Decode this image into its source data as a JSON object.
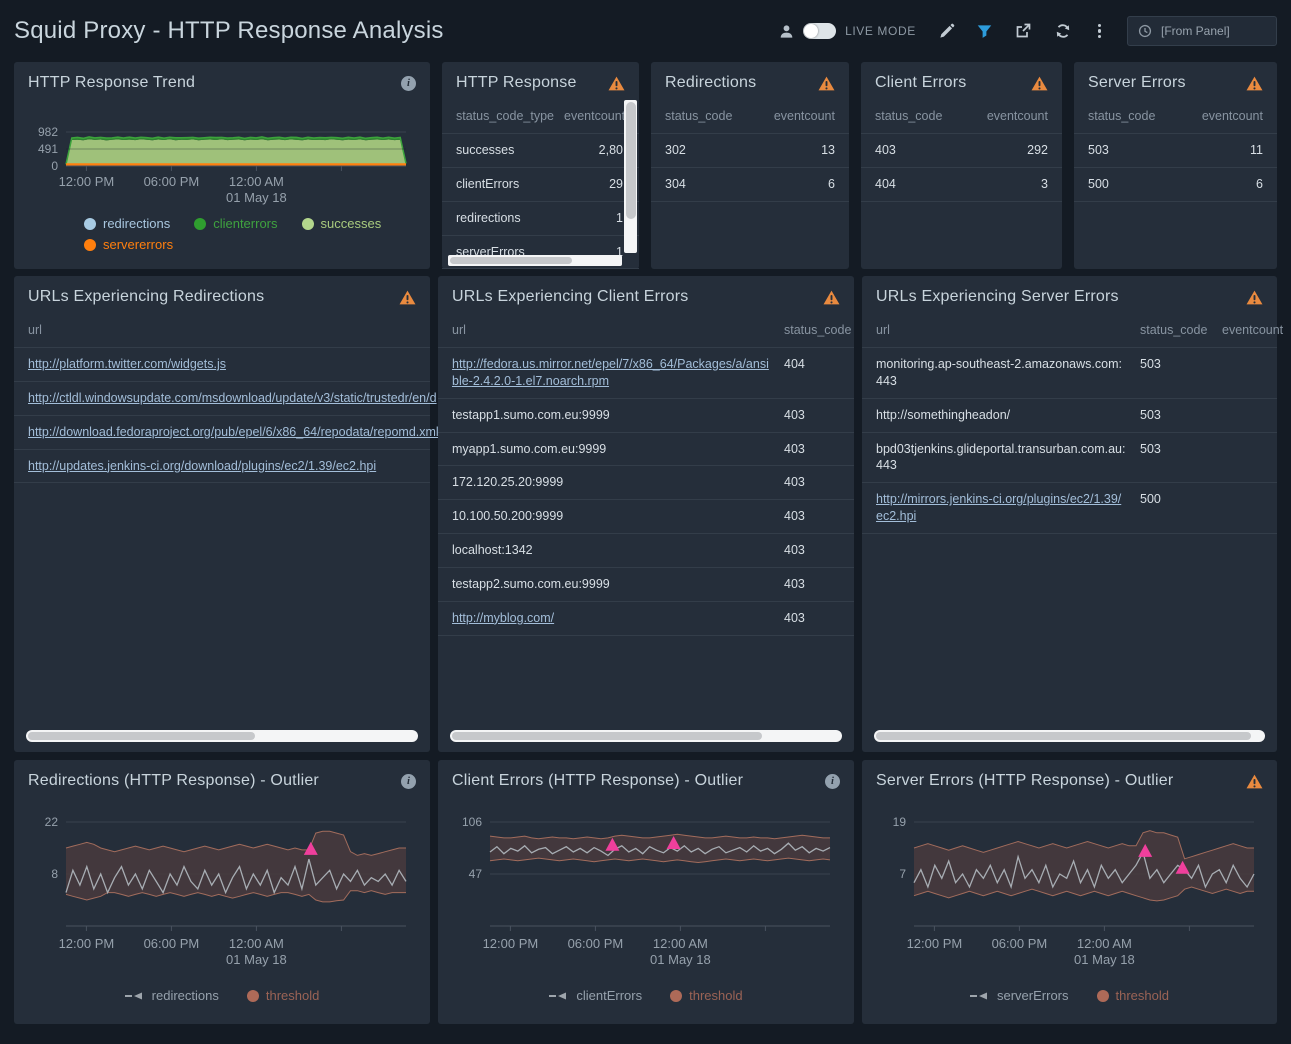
{
  "header": {
    "title": "Squid Proxy - HTTP Response Analysis",
    "live_mode_label": "LIVE MODE",
    "time_range_value": "[From Panel]"
  },
  "colors": {
    "page_bg": "#141B24",
    "panel_bg": "#252E3A",
    "accent_blue": "#2D9CDB",
    "warning_orange": "#E98A3F",
    "outlier_marker_pink": "#EF3F9C",
    "threshold_band_fill": "#483A3E",
    "threshold_band_edge": "#A26C5C",
    "series_line_gray": "#A7ADB3",
    "link_blue": "#A3BED9"
  },
  "panels": {
    "http_response_trend": {
      "title": "HTTP Response Trend",
      "icon": "info",
      "legend": [
        {
          "label": "redirections",
          "marker": "dot",
          "color": "#A8CBE3",
          "text_color": "#A9C7DF"
        },
        {
          "label": "clienterrors",
          "marker": "dot",
          "color": "#2F9E2F",
          "text_color": "#3FA23F"
        },
        {
          "label": "successes",
          "marker": "dot",
          "color": "#B3D68C",
          "text_color": "#A9CB7E"
        },
        {
          "label": "servererrors",
          "marker": "dot",
          "color": "#FF7F0E",
          "text_color": "#FF7F0E"
        }
      ]
    },
    "http_response": {
      "title": "HTTP Response",
      "icon": "warning",
      "columns": [
        "status_code_type",
        "eventcount"
      ],
      "rows": [
        [
          "successes",
          "2,80"
        ],
        [
          "clientErrors",
          "29"
        ],
        [
          "redirections",
          "1"
        ],
        [
          "serverErrors",
          "1"
        ]
      ]
    },
    "redirections": {
      "title": "Redirections",
      "icon": "warning",
      "columns": [
        "status_code",
        "eventcount"
      ],
      "rows": [
        [
          "302",
          "13"
        ],
        [
          "304",
          "6"
        ]
      ]
    },
    "client_errors": {
      "title": "Client Errors",
      "icon": "warning",
      "columns": [
        "status_code",
        "eventcount"
      ],
      "rows": [
        [
          "403",
          "292"
        ],
        [
          "404",
          "3"
        ]
      ]
    },
    "server_errors": {
      "title": "Server Errors",
      "icon": "warning",
      "columns": [
        "status_code",
        "eventcount"
      ],
      "rows": [
        [
          "503",
          "11"
        ],
        [
          "500",
          "6"
        ]
      ]
    },
    "urls_redirections": {
      "title": "URLs Experiencing Redirections",
      "icon": "warning",
      "columns": [
        "url"
      ],
      "rows": [
        {
          "url": "http://platform.twitter.com/widgets.js",
          "link": true
        },
        {
          "url": "http://ctldl.windowsupdate.com/msdownload/update/v3/static/trustedr/en/d",
          "link": true
        },
        {
          "url": "http://download.fedoraproject.org/pub/epel/6/x86_64/repodata/repomd.xml",
          "link": true
        },
        {
          "url": "http://updates.jenkins-ci.org/download/plugins/ec2/1.39/ec2.hpi",
          "link": true
        }
      ]
    },
    "urls_client_errors": {
      "title": "URLs Experiencing Client Errors",
      "icon": "warning",
      "columns": [
        "url",
        "status_code"
      ],
      "rows": [
        {
          "url": "http://fedora.us.mirror.net/epel/7/x86_64/Packages/a/ansible-2.4.2.0-1.el7.noarch.rpm",
          "status_code": "404",
          "link": true
        },
        {
          "url": "testapp1.sumo.com.eu:9999",
          "status_code": "403"
        },
        {
          "url": "myapp1.sumo.com.eu:9999",
          "status_code": "403"
        },
        {
          "url": "172.120.25.20:9999",
          "status_code": "403"
        },
        {
          "url": "10.100.50.200:9999",
          "status_code": "403"
        },
        {
          "url": "localhost:1342",
          "status_code": "403"
        },
        {
          "url": "testapp2.sumo.com.eu:9999",
          "status_code": "403"
        },
        {
          "url": "http://myblog.com/",
          "status_code": "403",
          "link": true
        }
      ]
    },
    "urls_server_errors": {
      "title": "URLs Experiencing Server Errors",
      "icon": "warning",
      "columns": [
        "url",
        "status_code",
        "eventcount"
      ],
      "rows": [
        {
          "url": "monitoring.ap-southeast-2.amazonaws.com:443",
          "status_code": "503",
          "eventcount": ""
        },
        {
          "url": "http://somethingheadon/",
          "status_code": "503",
          "eventcount": ""
        },
        {
          "url": "bpd03tjenkins.glideportal.transurban.com.au:443",
          "status_code": "503",
          "eventcount": ""
        },
        {
          "url": "http://mirrors.jenkins-ci.org/plugins/ec2/1.39/ec2.hpi",
          "status_code": "500",
          "eventcount": "",
          "link": true
        }
      ]
    },
    "outlier_redirections": {
      "title": "Redirections (HTTP Response) - Outlier",
      "icon": "info",
      "legend": [
        {
          "label": "redirections",
          "marker": "line",
          "color": "#9EA5AC",
          "text_color": "#96A1AC"
        },
        {
          "label": "threshold",
          "marker": "dot",
          "color": "#AE6A58",
          "text_color": "#9A6355"
        }
      ]
    },
    "outlier_client_errors": {
      "title": "Client Errors (HTTP Response) - Outlier",
      "icon": "info",
      "legend": [
        {
          "label": "clientErrors",
          "marker": "line",
          "color": "#9EA5AC",
          "text_color": "#96A1AC"
        },
        {
          "label": "threshold",
          "marker": "dot",
          "color": "#AE6A58",
          "text_color": "#9A6355"
        }
      ]
    },
    "outlier_server_errors": {
      "title": "Server Errors (HTTP Response) - Outlier",
      "icon": "warning",
      "legend": [
        {
          "label": "serverErrors",
          "marker": "line",
          "color": "#9EA5AC",
          "text_color": "#96A1AC"
        },
        {
          "label": "threshold",
          "marker": "dot",
          "color": "#AE6A58",
          "text_color": "#9A6355"
        }
      ]
    }
  },
  "chart_data": [
    {
      "type": "area",
      "title": "HTTP Response Trend",
      "stacked": true,
      "ylim": [
        0,
        982
      ],
      "yticks": [
        982,
        491,
        0
      ],
      "x_axis": {
        "ticks": [
          {
            "f": 0.06,
            "label": "12:00 PM"
          },
          {
            "f": 0.31,
            "label": "06:00 PM"
          },
          {
            "f": 0.56,
            "label": "12:00 AM",
            "sublabel": "01 May 18"
          },
          {
            "f": 0.81,
            "label": ""
          }
        ]
      },
      "series": [
        {
          "name": "successes",
          "color": "#A9CE80",
          "values": [
            40,
            750,
            760,
            745,
            770,
            755,
            765,
            740,
            758,
            768,
            750,
            762,
            748,
            772,
            756,
            744,
            766,
            752,
            770,
            746,
            760,
            754,
            768,
            742,
            758,
            764,
            750,
            770,
            748,
            756,
            766,
            744,
            762,
            752,
            770,
            746,
            758,
            764,
            748,
            768,
            754,
            742,
            766,
            750,
            760,
            748,
            770,
            756,
            744,
            762,
            752,
            768,
            746,
            758,
            764,
            750,
            766,
            748,
            760,
            60
          ]
        },
        {
          "name": "clienterrors",
          "color": "#2E8B2E",
          "values": [
            10,
            60,
            65,
            55,
            70,
            58,
            62,
            68,
            54,
            66,
            58,
            72,
            60,
            56,
            64,
            58,
            68,
            54,
            62,
            70,
            56,
            66,
            58,
            64,
            60,
            68,
            72,
            56,
            62,
            58,
            66,
            54,
            64,
            60,
            70,
            56,
            62,
            68,
            58,
            64,
            72,
            54,
            66,
            58,
            62,
            68,
            56,
            64,
            60,
            70,
            58,
            66,
            54,
            62,
            68,
            56,
            64,
            58,
            62,
            15
          ]
        },
        {
          "name": "servererrors",
          "color": "#FF7F0E",
          "constant": 8
        },
        {
          "name": "redirections",
          "color": "#A8CBE3",
          "constant": 4
        }
      ]
    },
    {
      "type": "line",
      "title": "Redirections (HTTP Response) - Outlier",
      "yticks": [
        22,
        8
      ],
      "x_axis": {
        "ticks": [
          {
            "f": 0.06,
            "label": "12:00 PM"
          },
          {
            "f": 0.31,
            "label": "06:00 PM"
          },
          {
            "f": 0.56,
            "label": "12:00 AM",
            "sublabel": "01 May 18"
          },
          {
            "f": 0.81,
            "label": ""
          }
        ]
      },
      "series": [
        {
          "name": "redirections",
          "color": "#A7ADB3",
          "values": [
            3,
            9,
            5,
            10,
            4,
            8,
            3,
            7,
            10,
            5,
            8,
            4,
            9,
            6,
            3,
            8,
            5,
            10,
            6,
            4,
            9,
            5,
            8,
            3,
            7,
            10,
            4,
            8,
            5,
            9,
            3,
            7,
            5,
            10,
            4,
            12,
            5,
            7,
            9,
            4,
            8,
            6,
            9,
            5,
            7,
            6,
            8,
            5,
            9,
            6
          ]
        }
      ],
      "threshold_band": {
        "fill": "#483A3E",
        "edge": "#A26C5C",
        "upper": [
          15,
          15.5,
          16,
          16.5,
          16,
          15,
          14.5,
          14,
          14.5,
          15,
          15.5,
          15,
          14.5,
          15,
          15.5,
          15,
          14.5,
          14,
          14.5,
          15,
          15.5,
          15,
          14.5,
          15,
          15.5,
          16,
          15.5,
          15,
          15.5,
          16,
          15.5,
          15,
          14.5,
          15,
          14.5,
          14.5,
          19,
          19.5,
          19.5,
          19,
          18.5,
          14,
          13,
          13.5,
          13,
          13.5,
          14,
          14.5,
          15,
          15
        ],
        "lower": [
          2.5,
          2,
          1.5,
          1,
          1.5,
          2,
          3,
          3,
          2.5,
          2,
          2.5,
          3,
          2.5,
          2,
          2.5,
          3,
          2.5,
          2,
          2.5,
          3,
          2.5,
          2,
          2.5,
          2,
          1.5,
          2,
          2.5,
          3,
          2.5,
          2,
          2.5,
          3,
          3,
          2.5,
          2,
          2.5,
          1,
          0.5,
          0.5,
          0.8,
          1,
          3.5,
          3.5,
          3,
          3.5,
          3,
          2.5,
          3,
          3,
          3
        ]
      },
      "outlier_markers": [
        {
          "x": 0.72,
          "y": 14.5
        }
      ]
    },
    {
      "type": "line",
      "title": "Client Errors (HTTP Response) - Outlier",
      "yticks": [
        106,
        47
      ],
      "x_axis": {
        "ticks": [
          {
            "f": 0.06,
            "label": "12:00 PM"
          },
          {
            "f": 0.31,
            "label": "06:00 PM"
          },
          {
            "f": 0.56,
            "label": "12:00 AM",
            "sublabel": "01 May 18"
          },
          {
            "f": 0.81,
            "label": ""
          }
        ]
      },
      "series": [
        {
          "name": "clientErrors",
          "color": "#A7ADB3",
          "values": [
            72,
            78,
            70,
            76,
            73,
            79,
            71,
            75,
            77,
            70,
            74,
            78,
            72,
            76,
            71,
            77,
            73,
            68,
            75,
            79,
            72,
            76,
            70,
            78,
            74,
            71,
            77,
            73,
            79,
            72,
            76,
            70,
            75,
            78,
            71,
            74,
            77,
            72,
            79,
            73,
            76,
            70,
            75,
            82,
            74,
            78,
            71,
            76,
            73,
            77
          ]
        }
      ],
      "threshold_band": {
        "fill": "#483A3E",
        "edge": "#A26C5C",
        "upper": [
          90,
          89,
          88,
          88,
          89,
          90,
          88,
          87,
          88,
          89,
          88,
          88,
          87,
          88,
          89,
          88,
          87,
          88,
          90,
          91,
          90,
          89,
          88,
          88,
          89,
          90,
          91,
          92,
          91,
          90,
          89,
          88,
          88,
          89,
          90,
          89,
          88,
          88,
          89,
          88,
          88,
          87,
          88,
          89,
          90,
          91,
          90,
          89,
          88,
          88
        ],
        "lower": [
          62,
          63,
          64,
          63,
          62,
          63,
          64,
          65,
          64,
          63,
          62,
          63,
          64,
          63,
          62,
          61,
          62,
          63,
          64,
          63,
          62,
          63,
          64,
          63,
          62,
          61,
          62,
          63,
          62,
          61,
          60,
          61,
          62,
          63,
          64,
          63,
          62,
          63,
          64,
          63,
          62,
          63,
          64,
          65,
          64,
          63,
          62,
          63,
          64,
          63
        ]
      },
      "outlier_markers": [
        {
          "x": 0.36,
          "y": 79
        },
        {
          "x": 0.54,
          "y": 81
        }
      ]
    },
    {
      "type": "line",
      "title": "Server Errors (HTTP Response) - Outlier",
      "yticks": [
        19,
        7
      ],
      "x_axis": {
        "ticks": [
          {
            "f": 0.06,
            "label": "12:00 PM"
          },
          {
            "f": 0.31,
            "label": "06:00 PM"
          },
          {
            "f": 0.56,
            "label": "12:00 AM",
            "sublabel": "01 May 18"
          },
          {
            "f": 0.81,
            "label": ""
          }
        ]
      },
      "series": [
        {
          "name": "serverErrors",
          "color": "#A7ADB3",
          "values": [
            5,
            8,
            4,
            9,
            6,
            10,
            5,
            7,
            4,
            8,
            6,
            9,
            5,
            8,
            4,
            11,
            6,
            8,
            5,
            9,
            4,
            7,
            6,
            10,
            5,
            8,
            4,
            9,
            6,
            8,
            5,
            7,
            9,
            12,
            6,
            8,
            5,
            7,
            9,
            8,
            6,
            9,
            4,
            7,
            8,
            5,
            9,
            6,
            4,
            7
          ]
        }
      ],
      "threshold_band": {
        "fill": "#483A3E",
        "edge": "#A26C5C",
        "upper": [
          13,
          13.5,
          14,
          13.5,
          13,
          12.5,
          13,
          13.5,
          13,
          12.5,
          12,
          12.5,
          13,
          13.5,
          14,
          14.5,
          14,
          13.5,
          13,
          13.5,
          14,
          13.5,
          13,
          13.5,
          14,
          14.5,
          14,
          13.5,
          13,
          13.5,
          14,
          13.5,
          13.5,
          16.5,
          17,
          16.5,
          16.5,
          16,
          15.5,
          10.5,
          11,
          11.5,
          12,
          12.5,
          13,
          13.5,
          14,
          13.5,
          13,
          13
        ],
        "lower": [
          2,
          2.5,
          3,
          2.5,
          2,
          1.5,
          2,
          2.5,
          3,
          2.5,
          2,
          2.5,
          3,
          2.5,
          2,
          2.5,
          3,
          3.5,
          3,
          2.5,
          2,
          2.5,
          3,
          2.5,
          2,
          2.5,
          3,
          2.5,
          2,
          2.5,
          3,
          2.5,
          2,
          1.5,
          1,
          0.8,
          1,
          1.5,
          2,
          3.5,
          4,
          3.5,
          3,
          2.5,
          3,
          3.5,
          3,
          2.5,
          3,
          3
        ]
      },
      "outlier_markers": [
        {
          "x": 0.68,
          "y": 12.1
        },
        {
          "x": 0.79,
          "y": 8.2
        }
      ]
    }
  ]
}
